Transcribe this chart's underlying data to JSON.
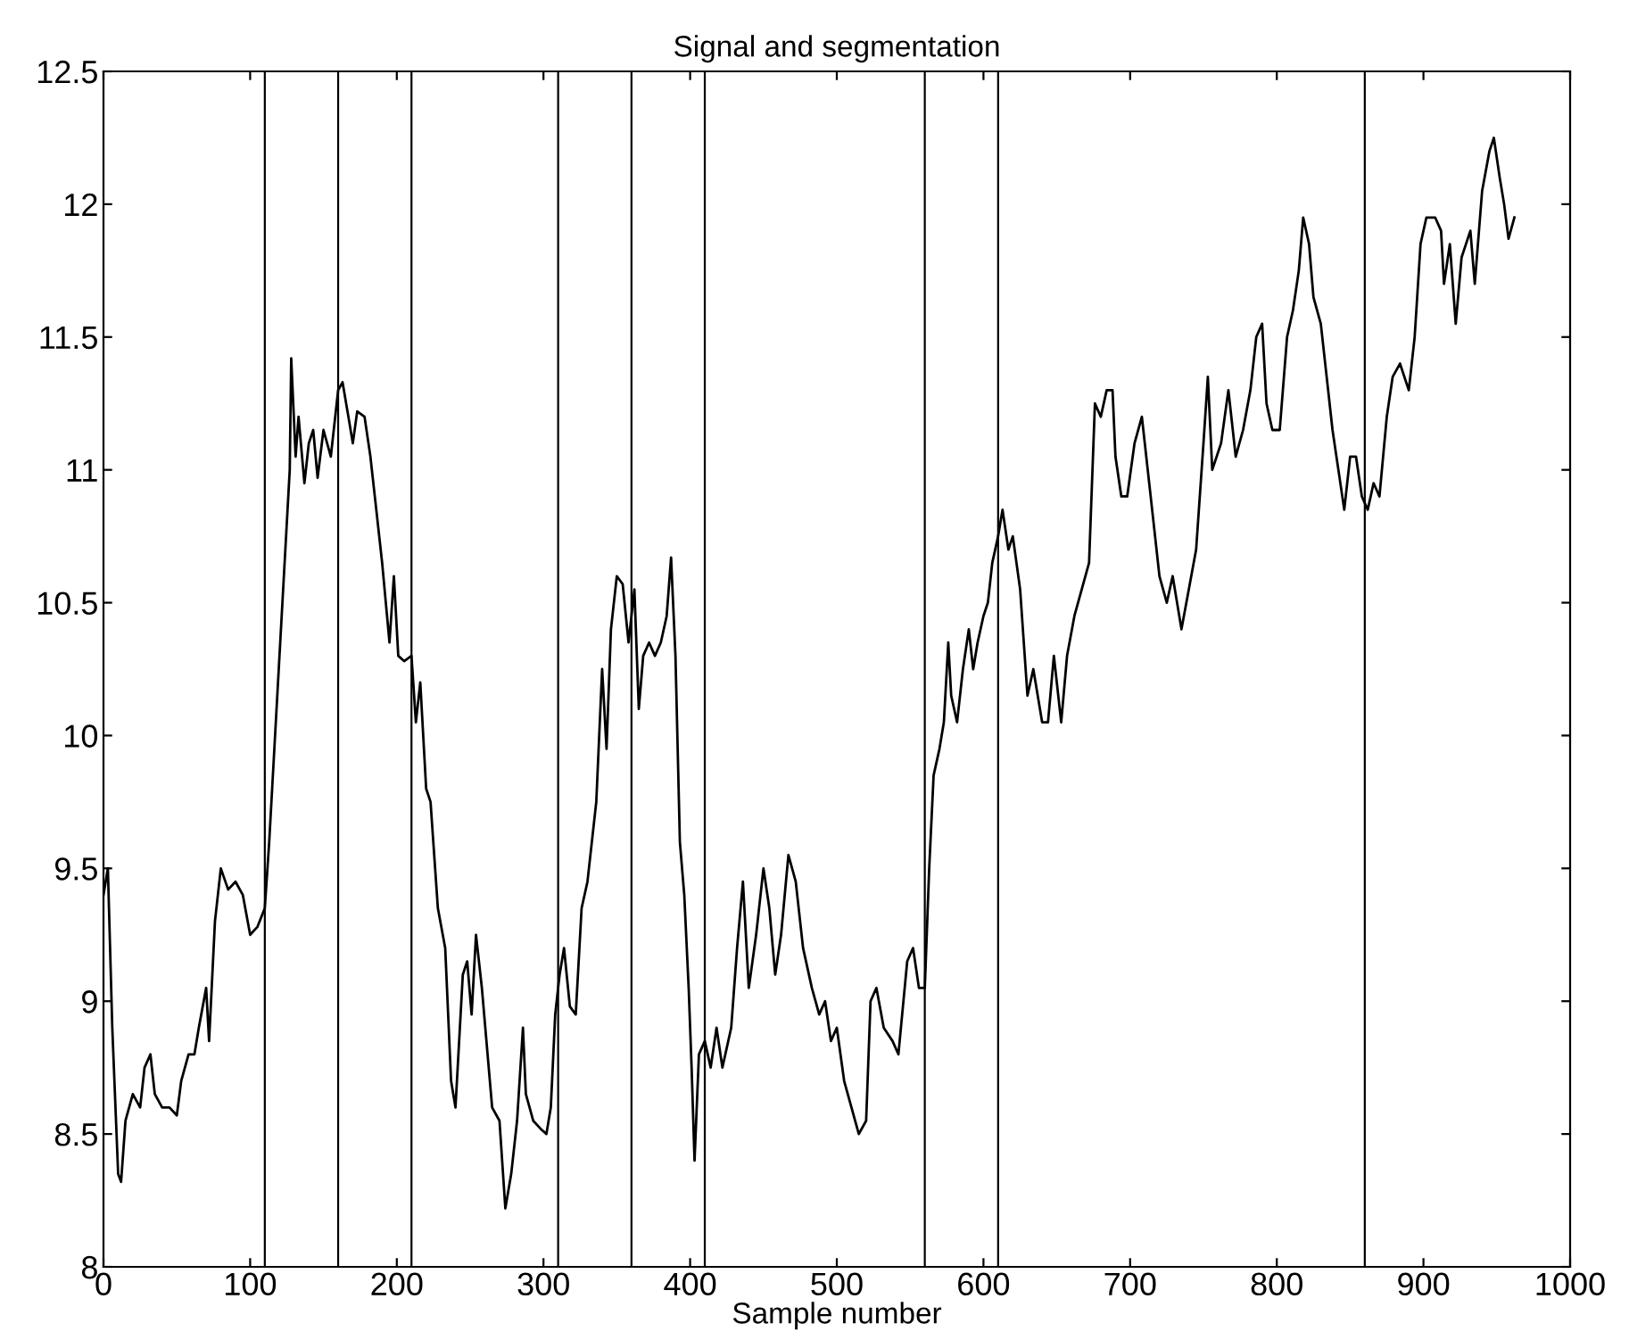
{
  "chart_data": {
    "type": "line",
    "title": "Signal and segmentation",
    "xlabel": "Sample number",
    "series": [
      {
        "color": "#000000",
        "x": [
          0,
          3,
          6,
          10,
          12,
          15,
          20,
          25,
          28,
          32,
          35,
          40,
          45,
          50,
          53,
          58,
          62,
          65,
          70,
          72,
          76,
          80,
          85,
          90,
          95,
          100,
          105,
          110,
          113,
          115,
          120,
          123,
          127,
          128,
          131,
          133,
          137,
          140,
          143,
          146,
          150,
          155,
          160,
          163,
          167,
          170,
          173,
          178,
          182,
          185,
          190,
          195,
          198,
          201,
          205,
          210,
          213,
          216,
          220,
          223,
          228,
          233,
          237,
          240,
          245,
          248,
          251,
          254,
          258,
          265,
          270,
          274,
          278,
          282,
          286,
          288,
          293,
          298,
          302,
          305,
          308,
          311,
          314,
          318,
          322,
          326,
          330,
          336,
          340,
          343,
          346,
          350,
          354,
          358,
          362,
          365,
          368,
          372,
          376,
          380,
          384,
          387,
          390,
          393,
          396,
          399,
          401,
          403,
          406,
          410,
          414,
          418,
          422,
          428,
          432,
          436,
          440,
          445,
          450,
          454,
          458,
          462,
          467,
          472,
          477,
          483,
          488,
          492,
          496,
          500,
          505,
          510,
          515,
          520,
          523,
          527,
          532,
          538,
          542,
          548,
          552,
          556,
          560,
          563,
          566,
          570,
          573,
          576,
          578,
          582,
          586,
          590,
          593,
          596,
          600,
          603,
          606,
          610,
          613,
          617,
          620,
          625,
          630,
          634,
          640,
          644,
          648,
          653,
          657,
          662,
          667,
          672,
          676,
          680,
          684,
          688,
          690,
          694,
          698,
          703,
          708,
          712,
          716,
          720,
          725,
          729,
          735,
          740,
          745,
          750,
          753,
          756,
          762,
          767,
          772,
          777,
          782,
          786,
          790,
          793,
          797,
          802,
          807,
          811,
          815,
          818,
          822,
          825,
          830,
          834,
          838,
          842,
          846,
          850,
          854,
          858,
          862,
          866,
          870,
          875,
          879,
          884,
          890,
          894,
          898,
          902,
          908,
          912,
          914,
          918,
          922,
          926,
          932,
          935,
          940,
          945,
          948,
          952,
          955,
          958,
          962
        ],
        "values": [
          9.4,
          9.5,
          8.9,
          8.35,
          8.32,
          8.55,
          8.65,
          8.6,
          8.75,
          8.8,
          8.65,
          8.6,
          8.6,
          8.57,
          8.7,
          8.8,
          8.8,
          8.9,
          9.05,
          8.85,
          9.3,
          9.5,
          9.42,
          9.45,
          9.4,
          9.25,
          9.28,
          9.35,
          9.6,
          9.8,
          10.3,
          10.6,
          11.0,
          11.42,
          11.05,
          11.2,
          10.95,
          11.1,
          11.15,
          10.97,
          11.15,
          11.05,
          11.3,
          11.33,
          11.2,
          11.1,
          11.22,
          11.2,
          11.05,
          10.9,
          10.65,
          10.35,
          10.6,
          10.3,
          10.28,
          10.3,
          10.05,
          10.2,
          9.8,
          9.75,
          9.35,
          9.2,
          8.7,
          8.6,
          9.1,
          9.15,
          8.95,
          9.25,
          9.05,
          8.6,
          8.55,
          8.22,
          8.35,
          8.55,
          8.9,
          8.65,
          8.55,
          8.52,
          8.5,
          8.6,
          8.95,
          9.1,
          9.2,
          8.98,
          8.95,
          9.35,
          9.45,
          9.75,
          10.25,
          9.95,
          10.4,
          10.6,
          10.57,
          10.35,
          10.55,
          10.1,
          10.3,
          10.35,
          10.3,
          10.35,
          10.45,
          10.67,
          10.3,
          9.6,
          9.4,
          9.05,
          8.75,
          8.4,
          8.8,
          8.85,
          8.75,
          8.9,
          8.75,
          8.9,
          9.2,
          9.45,
          9.05,
          9.25,
          9.5,
          9.35,
          9.1,
          9.25,
          9.55,
          9.45,
          9.2,
          9.05,
          8.95,
          9.0,
          8.85,
          8.9,
          8.7,
          8.6,
          8.5,
          8.55,
          9.0,
          9.05,
          8.9,
          8.85,
          8.8,
          9.15,
          9.2,
          9.05,
          9.05,
          9.5,
          9.85,
          9.95,
          10.05,
          10.35,
          10.15,
          10.05,
          10.25,
          10.4,
          10.25,
          10.35,
          10.45,
          10.5,
          10.65,
          10.75,
          10.85,
          10.7,
          10.75,
          10.55,
          10.15,
          10.25,
          10.05,
          10.05,
          10.3,
          10.05,
          10.3,
          10.45,
          10.55,
          10.65,
          11.25,
          11.2,
          11.3,
          11.3,
          11.05,
          10.9,
          10.9,
          11.1,
          11.2,
          11.0,
          10.8,
          10.6,
          10.5,
          10.6,
          10.4,
          10.55,
          10.7,
          11.1,
          11.35,
          11.0,
          11.1,
          11.3,
          11.05,
          11.15,
          11.3,
          11.5,
          11.55,
          11.25,
          11.15,
          11.15,
          11.5,
          11.6,
          11.75,
          11.95,
          11.85,
          11.65,
          11.55,
          11.35,
          11.15,
          11.0,
          10.85,
          11.05,
          11.05,
          10.9,
          10.85,
          10.95,
          10.9,
          11.2,
          11.35,
          11.4,
          11.3,
          11.5,
          11.85,
          11.95,
          11.95,
          11.9,
          11.7,
          11.85,
          11.55,
          11.8,
          11.9,
          11.7,
          12.05,
          12.2,
          12.25,
          12.1,
          12.0,
          11.87,
          11.95
        ]
      }
    ],
    "ref_lines": [
      {
        "axis": "x",
        "value": 110,
        "color": "#000000"
      },
      {
        "axis": "x",
        "value": 160,
        "color": "#000000"
      },
      {
        "axis": "x",
        "value": 210,
        "color": "#000000"
      },
      {
        "axis": "x",
        "value": 310,
        "color": "#000000"
      },
      {
        "axis": "x",
        "value": 360,
        "color": "#000000"
      },
      {
        "axis": "x",
        "value": 410,
        "color": "#000000"
      },
      {
        "axis": "x",
        "value": 560,
        "color": "#000000"
      },
      {
        "axis": "x",
        "value": 610,
        "color": "#000000"
      },
      {
        "axis": "x",
        "value": 860,
        "color": "#000000"
      }
    ],
    "xlim": [
      0,
      1000
    ],
    "ylim": [
      8,
      12.5
    ],
    "xticks": [
      0,
      100,
      200,
      300,
      400,
      500,
      600,
      700,
      800,
      900,
      1000
    ],
    "yticks": [
      8,
      8.5,
      9,
      9.5,
      10,
      10.5,
      11,
      11.5,
      12,
      12.5
    ],
    "grid": false,
    "legend": false,
    "marker": "none",
    "line_style": "solid"
  }
}
